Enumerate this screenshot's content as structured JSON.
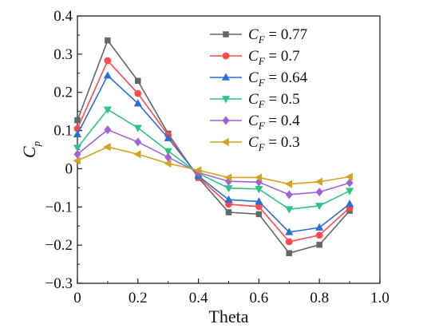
{
  "chart_data": {
    "type": "line",
    "xlabel": "Theta",
    "ylabel": "C",
    "ylabel_sub": "p",
    "xlim": [
      0,
      1.0
    ],
    "ylim": [
      -0.3,
      0.4
    ],
    "xticks": [
      0,
      0.2,
      0.4,
      0.6,
      0.8,
      1.0
    ],
    "xtick_labels": [
      "0",
      "0.2",
      "0.4",
      "0.6",
      "0.8",
      "1.0"
    ],
    "yticks": [
      -0.3,
      -0.2,
      -0.1,
      0,
      0.1,
      0.2,
      0.3,
      0.4
    ],
    "ytick_labels": [
      "−0.3",
      "−0.2",
      "−0.1",
      "0",
      "0.1",
      "0.2",
      "0.3",
      "0.4"
    ],
    "grid": false,
    "legend_position": "top-right",
    "x": [
      0,
      0.1,
      0.2,
      0.3,
      0.4,
      0.5,
      0.6,
      0.7,
      0.8,
      0.9
    ],
    "series": [
      {
        "label_main": "C",
        "label_sub": "F",
        "label_value": " = 0.77",
        "color": "#666666",
        "marker": "square",
        "values": [
          0.127,
          0.336,
          0.23,
          0.092,
          -0.024,
          -0.114,
          -0.119,
          -0.221,
          -0.199,
          -0.11
        ]
      },
      {
        "label_main": "C",
        "label_sub": "F",
        "label_value": " = 0.7",
        "color": "#ff4a4a",
        "marker": "circle",
        "values": [
          0.105,
          0.283,
          0.197,
          0.088,
          -0.022,
          -0.093,
          -0.099,
          -0.191,
          -0.174,
          -0.102
        ]
      },
      {
        "label_main": "C",
        "label_sub": "F",
        "label_value": " = 0.64",
        "color": "#2b6fd6",
        "marker": "triangle-up",
        "values": [
          0.09,
          0.244,
          0.171,
          0.08,
          -0.019,
          -0.081,
          -0.086,
          -0.166,
          -0.154,
          -0.092
        ]
      },
      {
        "label_main": "C",
        "label_sub": "F",
        "label_value": " = 0.5",
        "color": "#2ec486",
        "marker": "triangle-down",
        "values": [
          0.055,
          0.155,
          0.107,
          0.046,
          -0.012,
          -0.051,
          -0.053,
          -0.106,
          -0.097,
          -0.058
        ]
      },
      {
        "label_main": "C",
        "label_sub": "F",
        "label_value": " = 0.4",
        "color": "#a361d9",
        "marker": "diamond",
        "values": [
          0.038,
          0.102,
          0.07,
          0.03,
          -0.01,
          -0.033,
          -0.035,
          -0.068,
          -0.061,
          -0.037
        ]
      },
      {
        "label_main": "C",
        "label_sub": "F",
        "label_value": " = 0.3",
        "color": "#d5a21f",
        "marker": "triangle-left",
        "values": [
          0.021,
          0.057,
          0.038,
          0.014,
          -0.004,
          -0.023,
          -0.023,
          -0.04,
          -0.034,
          -0.021
        ]
      }
    ]
  }
}
